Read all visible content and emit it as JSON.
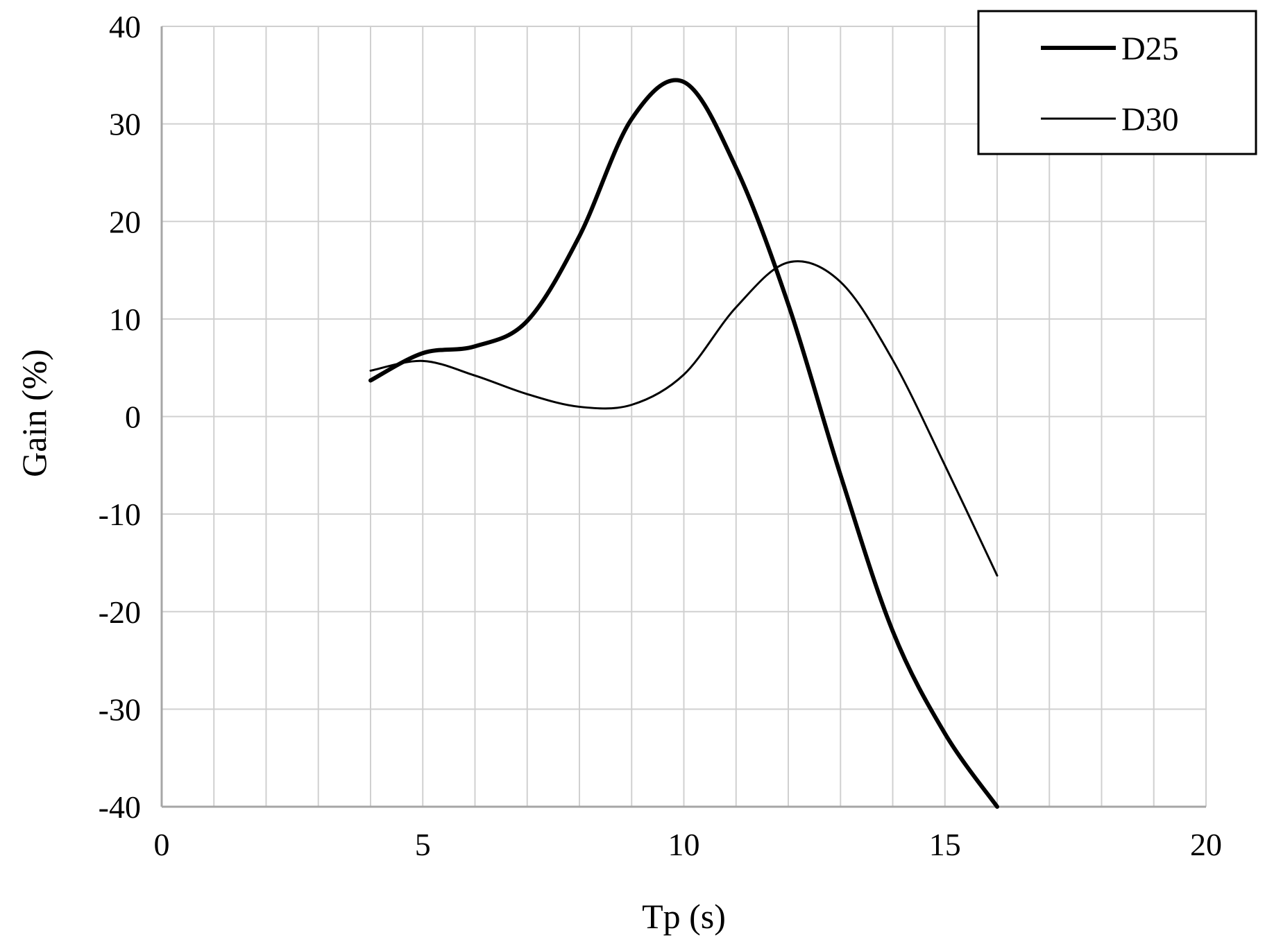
{
  "chart_data": {
    "type": "line",
    "title": "",
    "xlabel": "Tp (s)",
    "ylabel": "Gain (%)",
    "xlim": [
      0,
      20
    ],
    "ylim": [
      -40,
      40
    ],
    "xticks": [
      0,
      5,
      10,
      15,
      20
    ],
    "yticks": [
      40,
      30,
      20,
      10,
      0,
      -10,
      -20,
      -30,
      -40
    ],
    "x_minor_grid_step": 1,
    "y_grid_step": 10,
    "grid": true,
    "legend_position": "top-right",
    "series": [
      {
        "name": "D25",
        "line_weight": "thick",
        "color": "#000000",
        "x": [
          4,
          5,
          6,
          7,
          8,
          9,
          10,
          11,
          12,
          13,
          14,
          15,
          16
        ],
        "y": [
          3.7,
          6.5,
          7.2,
          9.8,
          18.5,
          30.5,
          34.3,
          25.5,
          11.5,
          -6.0,
          -22.0,
          -32.5,
          -40.0
        ]
      },
      {
        "name": "D30",
        "line_weight": "thin",
        "color": "#000000",
        "x": [
          4,
          5,
          6,
          7,
          8,
          9,
          10,
          11,
          12,
          13,
          14,
          15,
          16
        ],
        "y": [
          4.7,
          5.7,
          4.2,
          2.3,
          1.0,
          1.2,
          4.3,
          11.2,
          15.8,
          13.8,
          5.8,
          -5.0,
          -16.3
        ]
      }
    ]
  }
}
